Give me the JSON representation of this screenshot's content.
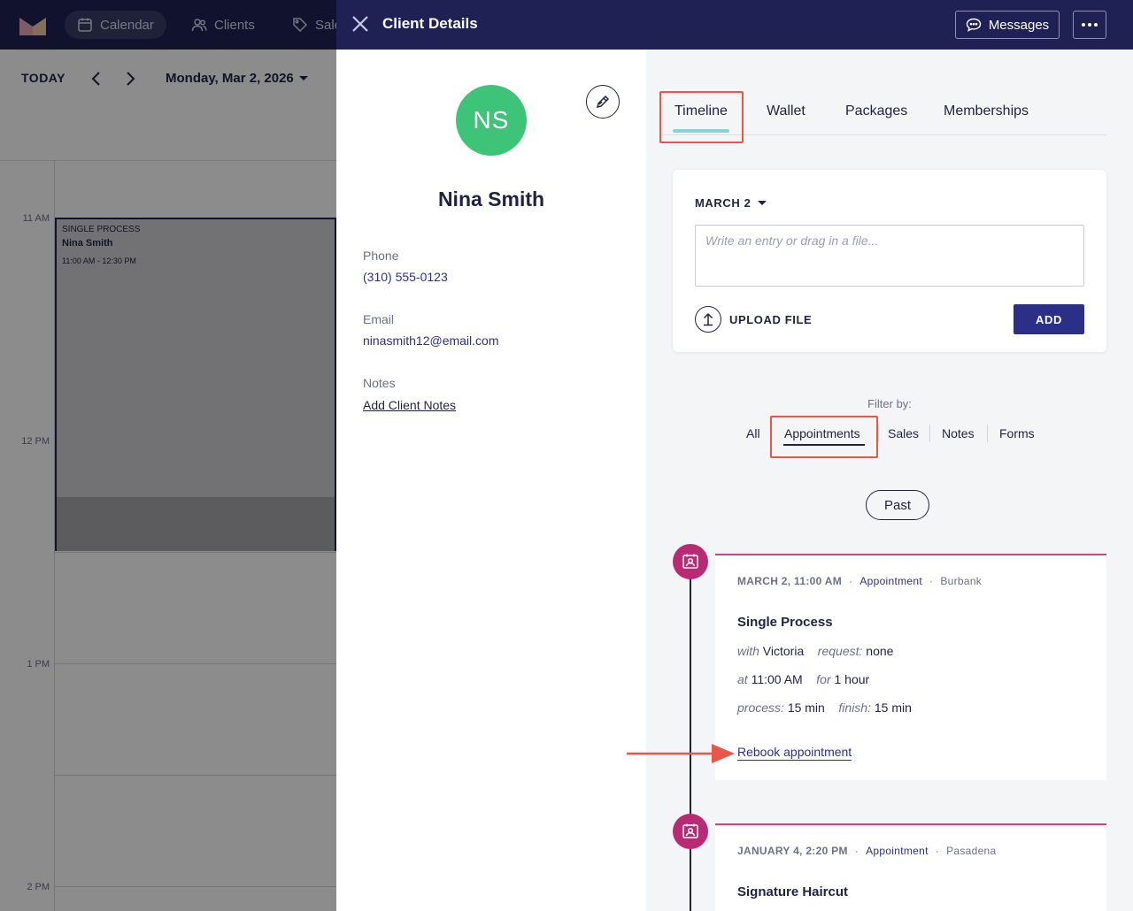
{
  "topnav": {
    "items": [
      {
        "label": "Calendar",
        "icon": "calendar-icon",
        "active": true
      },
      {
        "label": "Clients",
        "icon": "users-icon",
        "active": false
      },
      {
        "label": "Sale",
        "icon": "tag-icon",
        "active": false
      }
    ]
  },
  "calendar": {
    "today_label": "TODAY",
    "date_label": "Monday, Mar 2, 2026",
    "time_labels": [
      "11 AM",
      "12 PM",
      "1 PM",
      "2 PM"
    ],
    "appointment": {
      "kind": "SINGLE PROCESS",
      "client": "Nina Smith",
      "time": "11:00 AM - 12:30 PM"
    }
  },
  "drawer": {
    "title": "Client Details",
    "messages_label": "Messages"
  },
  "client": {
    "initials": "NS",
    "name": "Nina Smith",
    "phone_label": "Phone",
    "phone": "(310) 555-0123",
    "email_label": "Email",
    "email": "ninasmith12@email.com",
    "notes_label": "Notes",
    "notes_link": "Add Client Notes"
  },
  "tabs": {
    "items": [
      "Timeline",
      "Wallet",
      "Packages",
      "Memberships"
    ],
    "active": "Timeline"
  },
  "entry": {
    "date": "MARCH 2",
    "placeholder": "Write an entry or drag in a file...",
    "upload_label": "UPLOAD FILE",
    "add_label": "ADD"
  },
  "filters": {
    "label": "Filter by:",
    "items": [
      "All",
      "Appointments",
      "Sales",
      "Notes",
      "Forms"
    ],
    "active": "Appointments",
    "past_label": "Past"
  },
  "timeline": [
    {
      "when": "MARCH 2, 11:00 AM",
      "type": "Appointment",
      "location": "Burbank",
      "service": "Single Process",
      "with_label": "with",
      "with": "Victoria",
      "request_label": "request:",
      "request": "none",
      "at_label": "at",
      "at": "11:00 AM",
      "for_label": "for",
      "for": "1 hour",
      "process_label": "process:",
      "process": "15 min",
      "finish_label": "finish:",
      "finish": "15 min",
      "rebook": "Rebook appointment"
    },
    {
      "when": "JANUARY 4, 2:20 PM",
      "type": "Appointment",
      "location": "Pasadena",
      "service": "Signature Haircut"
    }
  ],
  "colors": {
    "navy": "#1f2155",
    "avatar": "#3ec478",
    "timeline_dot": "#b92a74",
    "highlight": "#e8574a",
    "tab_underline": "#86d3d6"
  }
}
